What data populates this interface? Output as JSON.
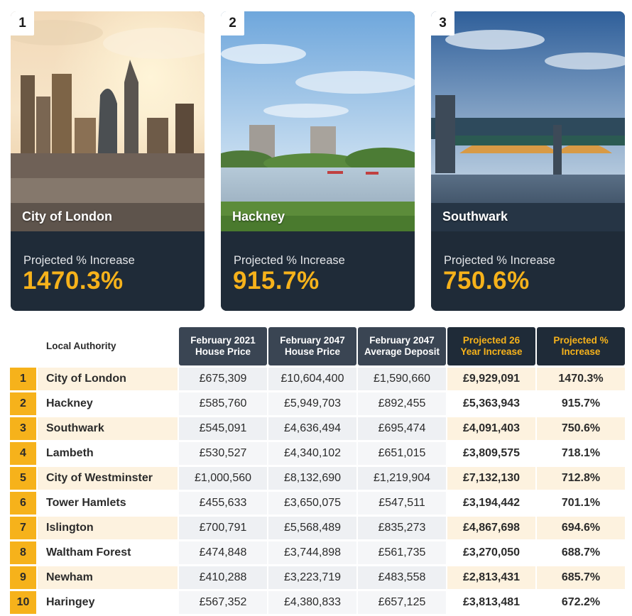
{
  "cards": [
    {
      "rank": "1",
      "name": "City of London",
      "label": "Projected % Increase",
      "value": "1470.3%"
    },
    {
      "rank": "2",
      "name": "Hackney",
      "label": "Projected % Increase",
      "value": "915.7%"
    },
    {
      "rank": "3",
      "name": "Southwark",
      "label": "Projected % Increase",
      "value": "750.6%"
    }
  ],
  "table": {
    "headers": {
      "local_authority": "Local Authority",
      "price_2021": [
        "February 2021",
        "House Price"
      ],
      "price_2047": [
        "February 2047",
        "House Price"
      ],
      "deposit_2047": [
        "February 2047",
        "Average Deposit"
      ],
      "increase_26": [
        "Projected 26",
        "Year Increase"
      ],
      "pct_increase": [
        "Projected %",
        "Increase"
      ]
    },
    "rows": [
      [
        "1",
        "City of London",
        "£675,309",
        "£10,604,400",
        "£1,590,660",
        "£9,929,091",
        "1470.3%"
      ],
      [
        "2",
        "Hackney",
        "£585,760",
        "£5,949,703",
        "£892,455",
        "£5,363,943",
        "915.7%"
      ],
      [
        "3",
        "Southwark",
        "£545,091",
        "£4,636,494",
        "£695,474",
        "£4,091,403",
        "750.6%"
      ],
      [
        "4",
        "Lambeth",
        "£530,527",
        "£4,340,102",
        "£651,015",
        "£3,809,575",
        "718.1%"
      ],
      [
        "5",
        "City of Westminster",
        "£1,000,560",
        "£8,132,690",
        "£1,219,904",
        "£7,132,130",
        "712.8%"
      ],
      [
        "6",
        "Tower Hamlets",
        "£455,633",
        "£3,650,075",
        "£547,511",
        "£3,194,442",
        "701.1%"
      ],
      [
        "7",
        "Islington",
        "£700,791",
        "£5,568,489",
        "£835,273",
        "£4,867,698",
        "694.6%"
      ],
      [
        "8",
        "Waltham Forest",
        "£474,848",
        "£3,744,898",
        "£561,735",
        "£3,270,050",
        "688.7%"
      ],
      [
        "9",
        "Newham",
        "£410,288",
        "£3,223,719",
        "£483,558",
        "£2,813,431",
        "685.7%"
      ],
      [
        "10",
        "Haringey",
        "£567,352",
        "£4,380,833",
        "£657,125",
        "£3,813,481",
        "672.2%"
      ]
    ]
  },
  "colors": {
    "accent": "#f6b21b",
    "card_bg": "#1f2b38",
    "header_dark": "#3a4553",
    "row_tint": "#fdf2df"
  },
  "chart_data": {
    "type": "table",
    "columns": [
      "Local Authority",
      "February 2021 House Price",
      "February 2047 House Price",
      "February 2047 Average Deposit",
      "Projected 26 Year Increase",
      "Projected % Increase"
    ],
    "rows": [
      [
        "City of London",
        675309,
        10604400,
        1590660,
        9929091,
        1470.3
      ],
      [
        "Hackney",
        585760,
        5949703,
        892455,
        5363943,
        915.7
      ],
      [
        "Southwark",
        545091,
        4636494,
        695474,
        4091403,
        750.6
      ],
      [
        "Lambeth",
        530527,
        4340102,
        651015,
        3809575,
        718.1
      ],
      [
        "City of Westminster",
        1000560,
        8132690,
        1219904,
        7132130,
        712.8
      ],
      [
        "Tower Hamlets",
        455633,
        3650075,
        547511,
        3194442,
        701.1
      ],
      [
        "Islington",
        700791,
        5568489,
        835273,
        4867698,
        694.6
      ],
      [
        "Waltham Forest",
        474848,
        3744898,
        561735,
        3270050,
        688.7
      ],
      [
        "Newham",
        410288,
        3223719,
        483558,
        2813431,
        685.7
      ],
      [
        "Haringey",
        567352,
        4380833,
        657125,
        3813481,
        672.2
      ]
    ]
  }
}
